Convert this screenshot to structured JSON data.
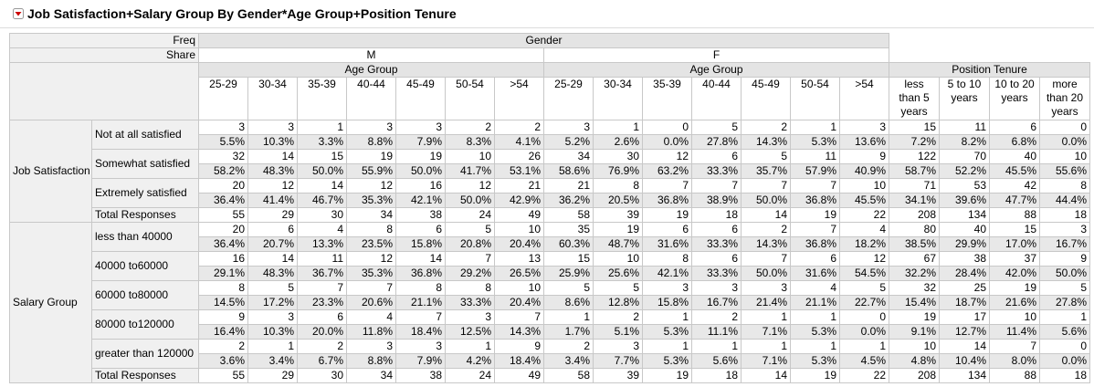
{
  "title": "Job Satisfaction+Salary Group By Gender*Age Group+Position Tenure",
  "header": {
    "freq_label": "Freq",
    "share_label": "Share",
    "gender": "Gender",
    "genders": [
      {
        "label": "M",
        "sub": "Age Group",
        "columns": [
          "25-29",
          "30-34",
          "35-39",
          "40-44",
          "45-49",
          "50-54",
          ">54"
        ]
      },
      {
        "label": "F",
        "sub": "Age Group",
        "columns": [
          "25-29",
          "30-34",
          "35-39",
          "40-44",
          "45-49",
          "50-54",
          ">54"
        ]
      }
    ],
    "tenure": {
      "label": "Position Tenure",
      "columns": [
        "less than 5 years",
        "5 to 10 years",
        "10 to 20 years",
        "more than 20 years"
      ]
    }
  },
  "groups": [
    {
      "label": "Job Satisfaction",
      "rows": [
        {
          "label": "Not at all satisfied",
          "freq": [
            3,
            3,
            1,
            3,
            3,
            2,
            2,
            3,
            1,
            0,
            5,
            2,
            1,
            3,
            15,
            11,
            6,
            0
          ],
          "share": [
            "5.5%",
            "10.3%",
            "3.3%",
            "8.8%",
            "7.9%",
            "8.3%",
            "4.1%",
            "5.2%",
            "2.6%",
            "0.0%",
            "27.8%",
            "14.3%",
            "5.3%",
            "13.6%",
            "7.2%",
            "8.2%",
            "6.8%",
            "0.0%"
          ]
        },
        {
          "label": "Somewhat satisfied",
          "freq": [
            32,
            14,
            15,
            19,
            19,
            10,
            26,
            34,
            30,
            12,
            6,
            5,
            11,
            9,
            122,
            70,
            40,
            10
          ],
          "share": [
            "58.2%",
            "48.3%",
            "50.0%",
            "55.9%",
            "50.0%",
            "41.7%",
            "53.1%",
            "58.6%",
            "76.9%",
            "63.2%",
            "33.3%",
            "35.7%",
            "57.9%",
            "40.9%",
            "58.7%",
            "52.2%",
            "45.5%",
            "55.6%"
          ]
        },
        {
          "label": "Extremely satisfied",
          "freq": [
            20,
            12,
            14,
            12,
            16,
            12,
            21,
            21,
            8,
            7,
            7,
            7,
            7,
            10,
            71,
            53,
            42,
            8
          ],
          "share": [
            "36.4%",
            "41.4%",
            "46.7%",
            "35.3%",
            "42.1%",
            "50.0%",
            "42.9%",
            "36.2%",
            "20.5%",
            "36.8%",
            "38.9%",
            "50.0%",
            "36.8%",
            "45.5%",
            "34.1%",
            "39.6%",
            "47.7%",
            "44.4%"
          ]
        }
      ],
      "total": {
        "label": "Total Responses",
        "values": [
          55,
          29,
          30,
          34,
          38,
          24,
          49,
          58,
          39,
          19,
          18,
          14,
          19,
          22,
          208,
          134,
          88,
          18
        ]
      }
    },
    {
      "label": "Salary Group",
      "rows": [
        {
          "label": "less than 40000",
          "freq": [
            20,
            6,
            4,
            8,
            6,
            5,
            10,
            35,
            19,
            6,
            6,
            2,
            7,
            4,
            80,
            40,
            15,
            3
          ],
          "share": [
            "36.4%",
            "20.7%",
            "13.3%",
            "23.5%",
            "15.8%",
            "20.8%",
            "20.4%",
            "60.3%",
            "48.7%",
            "31.6%",
            "33.3%",
            "14.3%",
            "36.8%",
            "18.2%",
            "38.5%",
            "29.9%",
            "17.0%",
            "16.7%"
          ]
        },
        {
          "label": "40000 to60000",
          "freq": [
            16,
            14,
            11,
            12,
            14,
            7,
            13,
            15,
            10,
            8,
            6,
            7,
            6,
            12,
            67,
            38,
            37,
            9
          ],
          "share": [
            "29.1%",
            "48.3%",
            "36.7%",
            "35.3%",
            "36.8%",
            "29.2%",
            "26.5%",
            "25.9%",
            "25.6%",
            "42.1%",
            "33.3%",
            "50.0%",
            "31.6%",
            "54.5%",
            "32.2%",
            "28.4%",
            "42.0%",
            "50.0%"
          ]
        },
        {
          "label": "60000 to80000",
          "freq": [
            8,
            5,
            7,
            7,
            8,
            8,
            10,
            5,
            5,
            3,
            3,
            3,
            4,
            5,
            32,
            25,
            19,
            5
          ],
          "share": [
            "14.5%",
            "17.2%",
            "23.3%",
            "20.6%",
            "21.1%",
            "33.3%",
            "20.4%",
            "8.6%",
            "12.8%",
            "15.8%",
            "16.7%",
            "21.4%",
            "21.1%",
            "22.7%",
            "15.4%",
            "18.7%",
            "21.6%",
            "27.8%"
          ]
        },
        {
          "label": "80000 to120000",
          "freq": [
            9,
            3,
            6,
            4,
            7,
            3,
            7,
            1,
            2,
            1,
            2,
            1,
            1,
            0,
            19,
            17,
            10,
            1
          ],
          "share": [
            "16.4%",
            "10.3%",
            "20.0%",
            "11.8%",
            "18.4%",
            "12.5%",
            "14.3%",
            "1.7%",
            "5.1%",
            "5.3%",
            "11.1%",
            "7.1%",
            "5.3%",
            "0.0%",
            "9.1%",
            "12.7%",
            "11.4%",
            "5.6%"
          ]
        },
        {
          "label": "greater than 120000",
          "freq": [
            2,
            1,
            2,
            3,
            3,
            1,
            9,
            2,
            3,
            1,
            1,
            1,
            1,
            1,
            10,
            14,
            7,
            0
          ],
          "share": [
            "3.6%",
            "3.4%",
            "6.7%",
            "8.8%",
            "7.9%",
            "4.2%",
            "18.4%",
            "3.4%",
            "7.7%",
            "5.3%",
            "5.6%",
            "7.1%",
            "5.3%",
            "4.5%",
            "4.8%",
            "10.4%",
            "8.0%",
            "0.0%"
          ]
        }
      ],
      "total": {
        "label": "Total Responses",
        "values": [
          55,
          29,
          30,
          34,
          38,
          24,
          49,
          58,
          39,
          19,
          18,
          14,
          19,
          22,
          208,
          134,
          88,
          18
        ]
      }
    }
  ]
}
